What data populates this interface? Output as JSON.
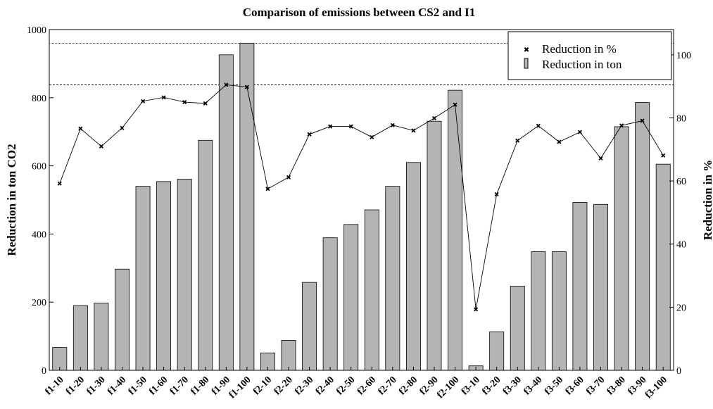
{
  "chart_data": {
    "type": "bar",
    "title": "Comparison of emissions between CS2 and I1",
    "ylabel": "Reduction in ton CO2",
    "y2label": "Reduction in %",
    "ylim": [
      0,
      1000
    ],
    "y2lim": [
      0,
      108
    ],
    "yticks": [
      0,
      200,
      400,
      600,
      800,
      1000
    ],
    "y2ticks": [
      0,
      20,
      40,
      60,
      80,
      100
    ],
    "categories": [
      "f1-10",
      "f1-20",
      "f1-30",
      "f1-40",
      "f1-50",
      "f1-60",
      "f1-70",
      "f1-80",
      "f1-90",
      "f1-100",
      "f2-10",
      "f2-20",
      "f2-30",
      "f2-40",
      "f2-50",
      "f2-60",
      "f2-70",
      "f2-80",
      "f2-90",
      "f2-100",
      "f3-10",
      "f3-20",
      "f3-30",
      "f3-40",
      "f3-50",
      "f3-60",
      "f3-70",
      "f3-80",
      "f3-90",
      "f3-100"
    ],
    "series": [
      {
        "name": "Reduction in ton",
        "kind": "bar",
        "axis": "left",
        "color": "#b4b4b4",
        "values": [
          67,
          190,
          197,
          297,
          540,
          554,
          561,
          675,
          926,
          960,
          51,
          88,
          258,
          389,
          428,
          471,
          540,
          610,
          731,
          822,
          13,
          113,
          247,
          348,
          348,
          493,
          487,
          715,
          786,
          605
        ]
      },
      {
        "name": "Reduction in %",
        "kind": "line",
        "axis": "right",
        "color": "#000000",
        "values": [
          59.2,
          76.6,
          71.0,
          76.8,
          85.3,
          86.5,
          85.0,
          84.6,
          90.5,
          89.8,
          57.5,
          61.2,
          74.8,
          77.3,
          77.3,
          73.9,
          77.7,
          76.0,
          79.9,
          84.2,
          19.3,
          55.8,
          72.8,
          77.5,
          72.4,
          75.5,
          67.2,
          77.6,
          79.1,
          68.1
        ]
      }
    ],
    "reference_lines": [
      {
        "axis": "left",
        "value": 960
      },
      {
        "axis": "right",
        "value": 90.5
      }
    ],
    "grid": false,
    "legend_position": "top-right"
  }
}
